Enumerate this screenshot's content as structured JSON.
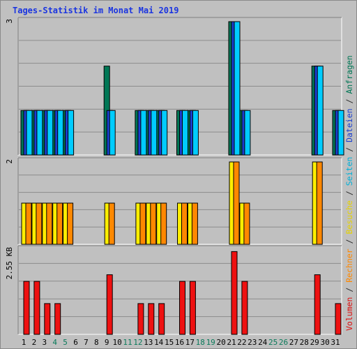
{
  "chart_data": {
    "type": "bar",
    "title": "Tages-Statistik im Monat Mai 2019",
    "x_tick_labels": [
      {
        "label": "1",
        "color": "#000000"
      },
      {
        "label": "2",
        "color": "#000000"
      },
      {
        "label": "3",
        "color": "#000000"
      },
      {
        "label": "4",
        "color": "#0a7a5a"
      },
      {
        "label": "5",
        "color": "#0a7a5a"
      },
      {
        "label": "6",
        "color": "#000000"
      },
      {
        "label": "7",
        "color": "#000000"
      },
      {
        "label": "8",
        "color": "#000000"
      },
      {
        "label": "9",
        "color": "#000000"
      },
      {
        "label": "10",
        "color": "#000000"
      },
      {
        "label": "11",
        "color": "#0a7a5a"
      },
      {
        "label": "12",
        "color": "#0a7a5a"
      },
      {
        "label": "13",
        "color": "#000000"
      },
      {
        "label": "14",
        "color": "#000000"
      },
      {
        "label": "15",
        "color": "#000000"
      },
      {
        "label": "16",
        "color": "#000000"
      },
      {
        "label": "17",
        "color": "#000000"
      },
      {
        "label": "18",
        "color": "#0a7a5a"
      },
      {
        "label": "19",
        "color": "#0a7a5a"
      },
      {
        "label": "20",
        "color": "#000000"
      },
      {
        "label": "21",
        "color": "#000000"
      },
      {
        "label": "22",
        "color": "#000000"
      },
      {
        "label": "23",
        "color": "#000000"
      },
      {
        "label": "24",
        "color": "#000000"
      },
      {
        "label": "25",
        "color": "#0a7a5a"
      },
      {
        "label": "26",
        "color": "#0a7a5a"
      },
      {
        "label": "27",
        "color": "#000000"
      },
      {
        "label": "28",
        "color": "#000000"
      },
      {
        "label": "29",
        "color": "#000000"
      },
      {
        "label": "30",
        "color": "#000000"
      },
      {
        "label": "31",
        "color": "#000000"
      }
    ],
    "right_axis_label": [
      {
        "text": "Volumen",
        "color": "#dd1010"
      },
      {
        "text": " / ",
        "color": "#222222"
      },
      {
        "text": "Rechner",
        "color": "#ff8800"
      },
      {
        "text": " / ",
        "color": "#222222"
      },
      {
        "text": "Besuche",
        "color": "#e6d200"
      },
      {
        "text": " / ",
        "color": "#222222"
      },
      {
        "text": "Seiten",
        "color": "#00b0d8"
      },
      {
        "text": " / ",
        "color": "#222222"
      },
      {
        "text": "Dateien",
        "color": "#1a3fd0"
      },
      {
        "text": " / ",
        "color": "#222222"
      },
      {
        "text": "Anfragen",
        "color": "#007755"
      }
    ],
    "panels": [
      {
        "id": "top",
        "max_label": "3",
        "ymax": 3,
        "series": [
          {
            "name": "Anfragen",
            "color": "#007755",
            "values": [
              1,
              1,
              1,
              1,
              1,
              0,
              0,
              0,
              2,
              0,
              0,
              1,
              1,
              1,
              0,
              1,
              1,
              0,
              0,
              0,
              3,
              1,
              0,
              0,
              0,
              0,
              0,
              0,
              2,
              0,
              1
            ]
          },
          {
            "name": "Dateien",
            "color": "#1a3fd0",
            "values": [
              1,
              1,
              1,
              1,
              1,
              0,
              0,
              0,
              1,
              0,
              0,
              1,
              1,
              1,
              0,
              1,
              1,
              0,
              0,
              0,
              3,
              1,
              0,
              0,
              0,
              0,
              0,
              0,
              2,
              0,
              1
            ]
          },
          {
            "name": "Seiten",
            "color": "#00ccff",
            "values": [
              1,
              1,
              1,
              1,
              1,
              0,
              0,
              0,
              1,
              0,
              0,
              1,
              1,
              1,
              0,
              1,
              1,
              0,
              0,
              0,
              3,
              1,
              0,
              0,
              0,
              0,
              0,
              0,
              2,
              0,
              1
            ]
          }
        ]
      },
      {
        "id": "middle",
        "max_label": "2",
        "ymax": 2,
        "series": [
          {
            "name": "Besuche",
            "color": "#ffee00",
            "values": [
              1,
              1,
              1,
              1,
              1,
              0,
              0,
              0,
              1,
              0,
              0,
              1,
              1,
              1,
              0,
              1,
              1,
              0,
              0,
              0,
              2,
              1,
              0,
              0,
              0,
              0,
              0,
              0,
              2,
              0,
              0
            ]
          },
          {
            "name": "Rechner",
            "color": "#ff8800",
            "values": [
              1,
              1,
              1,
              1,
              1,
              0,
              0,
              0,
              1,
              0,
              0,
              1,
              1,
              1,
              0,
              1,
              1,
              0,
              0,
              0,
              2,
              1,
              0,
              0,
              0,
              0,
              0,
              0,
              2,
              0,
              0
            ]
          }
        ]
      },
      {
        "id": "bottom",
        "max_label": "2.55 KB",
        "ymax": 2.55,
        "series": [
          {
            "name": "Volumen",
            "color": "#ee1111",
            "values": [
              1.6,
              1.6,
              0.93,
              0.93,
              0,
              0,
              0,
              0,
              1.8,
              0,
              0,
              0.93,
              0.93,
              0.93,
              0,
              1.6,
              1.6,
              0,
              0,
              0,
              2.5,
              1.6,
              0,
              0,
              0,
              0,
              0,
              0,
              1.8,
              0,
              0.93
            ]
          }
        ]
      }
    ]
  }
}
